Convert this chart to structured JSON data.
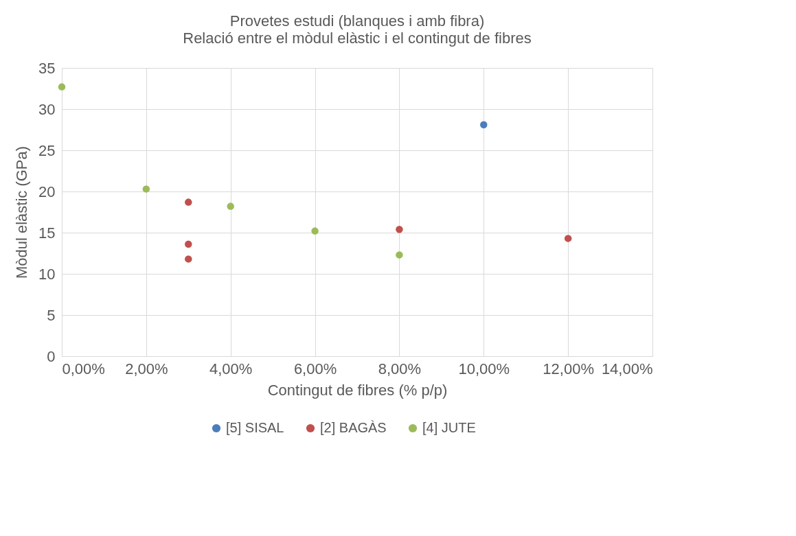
{
  "chart_data": {
    "type": "scatter",
    "title": "Provetes estudi (blanques i amb fibra)",
    "subtitle": "Relació entre el mòdul elàstic i el contingut de fibres",
    "xlabel": "Contingut de fibres (% p/p)",
    "ylabel": "Mòdul elàstic (GPa)",
    "series": [
      {
        "name": "[5] SISAL",
        "color": "#4a7ebb",
        "x": [
          10
        ],
        "values": [
          28.1
        ]
      },
      {
        "name": "[2] BAGÀS",
        "color": "#c0504d",
        "x": [
          3,
          3,
          3,
          8,
          12
        ],
        "values": [
          18.7,
          13.6,
          11.8,
          15.4,
          14.3
        ]
      },
      {
        "name": "[4] JUTE",
        "color": "#9bbb59",
        "x": [
          0,
          2,
          4,
          6,
          8
        ],
        "values": [
          32.7,
          20.3,
          18.2,
          15.2,
          12.3
        ]
      }
    ],
    "xlim": [
      0,
      14
    ],
    "xticks": [
      {
        "value": 0,
        "label": "0,00%"
      },
      {
        "value": 2,
        "label": "2,00%"
      },
      {
        "value": 4,
        "label": "4,00%"
      },
      {
        "value": 6,
        "label": "6,00%"
      },
      {
        "value": 8,
        "label": "8,00%"
      },
      {
        "value": 10,
        "label": "10,00%"
      },
      {
        "value": 12,
        "label": "12,00%"
      },
      {
        "value": 14,
        "label": "14,00%"
      }
    ],
    "ylim": [
      0,
      35
    ],
    "yticks": [
      0,
      5,
      10,
      15,
      20,
      25,
      30,
      35
    ],
    "grid": true,
    "legend": "bottom",
    "marker": "circle"
  }
}
